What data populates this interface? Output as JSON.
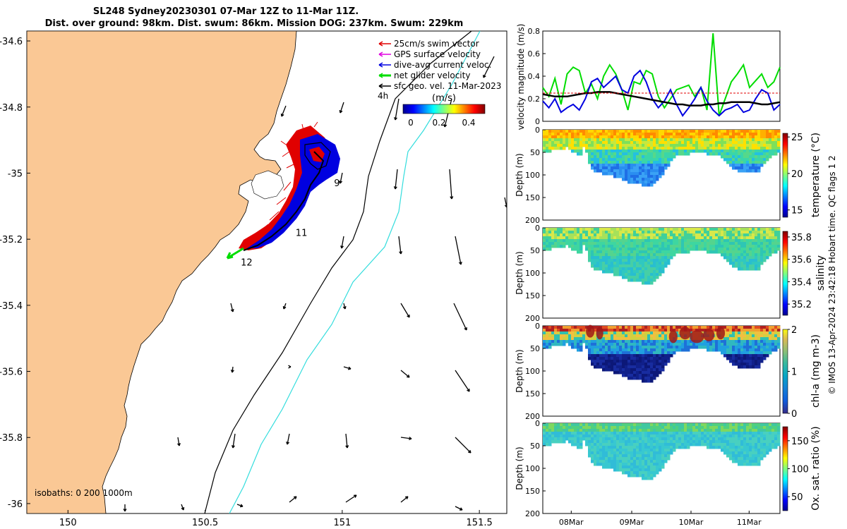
{
  "title": {
    "line1": "SL248 Sydney20230301 07-Mar 12Z to 11-Mar 11Z.",
    "line2": "Dist. over ground: 98km. Dist. swum: 86km. Mission DOG: 237km. Swum: 229km"
  },
  "chart_data": [
    {
      "type": "map",
      "name": "glider track map",
      "x_ticks": [
        "150",
        "150.5",
        "151",
        "151.5"
      ],
      "y_ticks": [
        "-34.6",
        "-34.8",
        "-35",
        "-35.2",
        "-35.4",
        "-35.6",
        "-35.8",
        "-36"
      ],
      "xlim": [
        149.85,
        151.6
      ],
      "ylim": [
        -36.03,
        -34.57
      ],
      "legend": [
        {
          "label": "25cm/s swim vector",
          "color": "#e00000"
        },
        {
          "label": "GPS surface velocity",
          "color": "#e000e0"
        },
        {
          "label": "dive-avg current veloc.",
          "color": "#0000e0"
        },
        {
          "label": "net glider velocity",
          "color": "#00dd00"
        },
        {
          "label": "sfc geo. vel. 11-Mar-2023",
          "color": "#000000"
        }
      ],
      "legend_extra": "4h",
      "colorbar": {
        "title": "(m/s)",
        "ticks": [
          "0",
          "0.2",
          "0.4"
        ]
      },
      "day_labels": [
        {
          "text": "9",
          "lon": 150.97,
          "lat": -35.04
        },
        {
          "text": "11",
          "lon": 150.83,
          "lat": -35.19
        },
        {
          "text": "12",
          "lon": 150.63,
          "lat": -35.28
        }
      ],
      "isobaths_label": "isobaths: 0   200  1000m"
    },
    {
      "type": "line",
      "name": "velocity magnitude",
      "ylabel": "velocity magnitude (m/s)",
      "ylim": [
        0,
        0.8
      ],
      "y_ticks": [
        "0",
        "0.2",
        "0.4",
        "0.6",
        "0.8"
      ],
      "series": [
        {
          "name": "net glider velocity",
          "color": "#00dd00",
          "values": [
            0.3,
            0.22,
            0.38,
            0.15,
            0.42,
            0.48,
            0.45,
            0.25,
            0.33,
            0.2,
            0.4,
            0.5,
            0.42,
            0.28,
            0.1,
            0.35,
            0.33,
            0.45,
            0.42,
            0.22,
            0.12,
            0.2,
            0.28,
            0.3,
            0.32,
            0.22,
            0.3,
            0.1,
            0.78,
            0.05,
            0.2,
            0.35,
            0.42,
            0.5,
            0.3,
            0.36,
            0.42,
            0.3,
            0.35,
            0.48
          ]
        },
        {
          "name": "dive-avg current veloc.",
          "color": "#0000e0",
          "values": [
            0.18,
            0.12,
            0.2,
            0.08,
            0.12,
            0.15,
            0.1,
            0.2,
            0.35,
            0.38,
            0.3,
            0.35,
            0.4,
            0.28,
            0.25,
            0.4,
            0.45,
            0.35,
            0.2,
            0.12,
            0.18,
            0.28,
            0.15,
            0.05,
            0.12,
            0.2,
            0.3,
            0.18,
            0.1,
            0.05,
            0.1,
            0.12,
            0.15,
            0.08,
            0.1,
            0.2,
            0.28,
            0.25,
            0.1,
            0.15
          ]
        },
        {
          "name": "sfc geo. vel.",
          "color": "#000000",
          "values": [
            0.24,
            0.23,
            0.22,
            0.22,
            0.22,
            0.23,
            0.24,
            0.25,
            0.25,
            0.26,
            0.26,
            0.26,
            0.25,
            0.24,
            0.23,
            0.22,
            0.21,
            0.2,
            0.19,
            0.18,
            0.17,
            0.16,
            0.15,
            0.15,
            0.14,
            0.14,
            0.14,
            0.15,
            0.15,
            0.16,
            0.16,
            0.17,
            0.17,
            0.17,
            0.17,
            0.16,
            0.15,
            0.15,
            0.16,
            0.17
          ]
        },
        {
          "name": "swim speed",
          "color": "#e00000",
          "values": [
            0.25,
            0.25,
            0.25,
            0.25,
            0.25,
            0.25,
            0.25,
            0.25,
            0.25,
            0.25,
            0.25,
            0.25,
            0.25,
            0.25,
            0.25,
            0.25,
            0.25,
            0.25,
            0.25,
            0.25,
            0.25,
            0.25,
            0.25,
            0.25,
            0.25,
            0.25,
            0.25,
            0.25,
            0.25,
            0.25,
            0.25,
            0.25,
            0.25,
            0.25,
            0.25,
            0.25,
            0.25,
            0.25,
            0.25,
            0.25
          ]
        }
      ]
    },
    {
      "type": "heatmap",
      "name": "temperature section",
      "ylabel": "Depth (m)",
      "y_ticks": [
        "0",
        "50",
        "100",
        "150",
        "200"
      ],
      "ylim": [
        0,
        200
      ],
      "colorbar_label": "temperature (°C)",
      "colorbar_ticks": [
        "25",
        "20",
        "15"
      ],
      "clim": [
        14,
        25.5
      ]
    },
    {
      "type": "heatmap",
      "name": "salinity section",
      "ylabel": "Depth (m)",
      "y_ticks": [
        "0",
        "50",
        "100",
        "150",
        "200"
      ],
      "ylim": [
        0,
        200
      ],
      "colorbar_label": "salinity",
      "colorbar_ticks": [
        "35.8",
        "35.6",
        "35.4",
        "35.2"
      ],
      "clim": [
        35.1,
        35.85
      ]
    },
    {
      "type": "heatmap",
      "name": "chlorophyll section",
      "ylabel": "Depth (m)",
      "y_ticks": [
        "0",
        "50",
        "100",
        "150",
        "200"
      ],
      "ylim": [
        0,
        200
      ],
      "colorbar_label": "chl-a (mg m-3)",
      "colorbar_ticks": [
        "2",
        "1",
        "0"
      ],
      "clim": [
        0,
        2
      ]
    },
    {
      "type": "heatmap",
      "name": "oxygen section",
      "ylabel": "Depth (m)",
      "y_ticks": [
        "0",
        "50",
        "100",
        "150",
        "200"
      ],
      "ylim": [
        0,
        200
      ],
      "x_ticks": [
        "08Mar",
        "09Mar",
        "10Mar",
        "11Mar"
      ],
      "colorbar_label": "Ox. sat. ratio (%)",
      "colorbar_ticks": [
        "150",
        "100",
        "50"
      ],
      "clim": [
        25,
        175
      ]
    }
  ],
  "credit": "© IMOS 13-Apr-2024 23:42:18 Hobart time. QC flags 1  2",
  "colors": {
    "land": "#fac895",
    "glider_track": "#0000e0",
    "swim": "#e00000",
    "net": "#00dd00",
    "isobath_200": "#000000",
    "isobath_1000": "#33dddd"
  }
}
